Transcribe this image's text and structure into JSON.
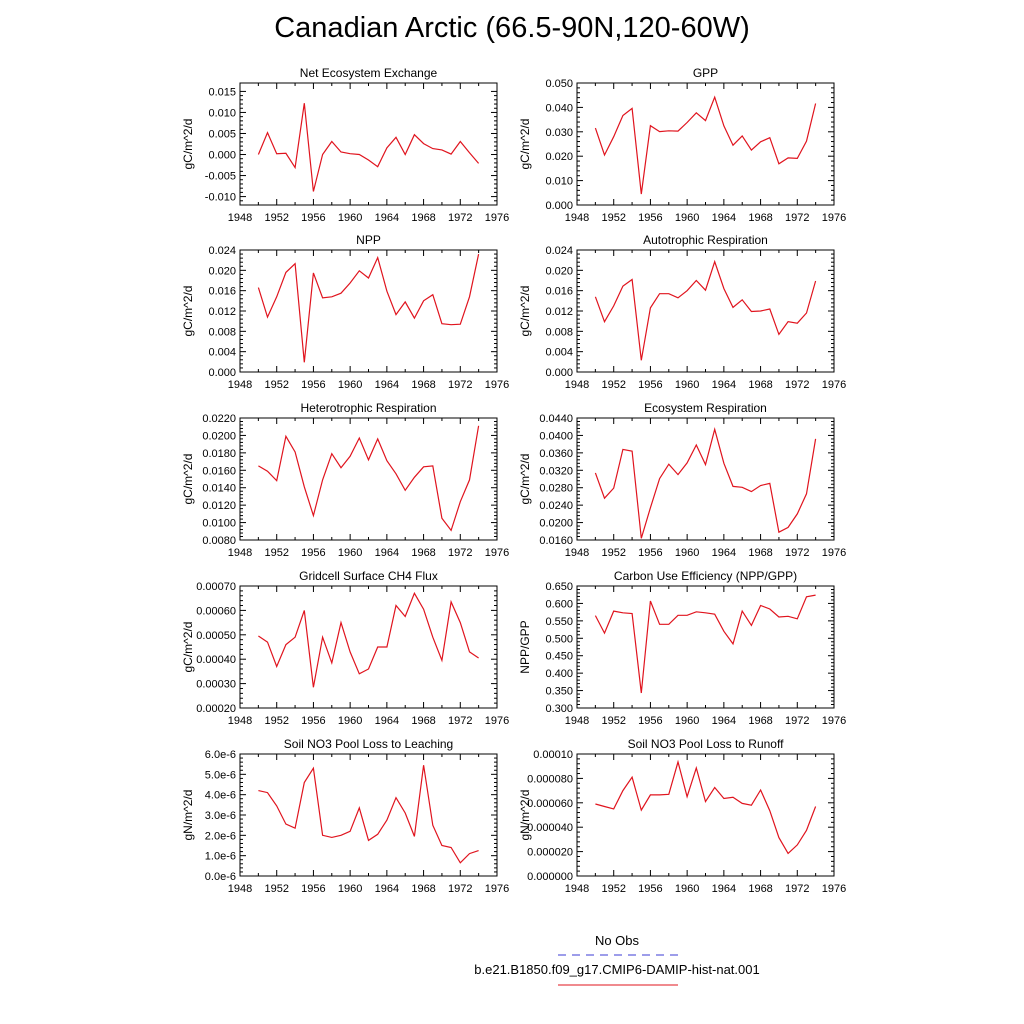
{
  "title": "Canadian Arctic (66.5-90N,120-60W)",
  "legend": {
    "items": [
      {
        "label": "No Obs",
        "color": "#3b3bd6",
        "dash": true
      },
      {
        "label": "b.e21.B1850.f09_g17.CMIP6-DAMIP-hist-nat.001",
        "color": "#e0141e",
        "dash": false
      }
    ]
  },
  "chart_data": [
    {
      "type": "line",
      "title": "Net Ecosystem Exchange",
      "ylabel": "gC/m^2/d",
      "xlim": [
        1948,
        1976
      ],
      "xticks": [
        1948,
        1952,
        1956,
        1960,
        1964,
        1968,
        1972,
        1976
      ],
      "ylim": [
        -0.012,
        0.017
      ],
      "yticks": [
        -0.01,
        -0.005,
        0.0,
        0.005,
        0.01,
        0.015
      ],
      "ytick_labels": [
        "-0.010",
        "-0.005",
        "0.000",
        "0.005",
        "0.010",
        "0.015"
      ],
      "x": [
        1950,
        1951,
        1952,
        1953,
        1954,
        1955,
        1956,
        1957,
        1958,
        1959,
        1960,
        1961,
        1962,
        1963,
        1964,
        1965,
        1966,
        1967,
        1968,
        1969,
        1970,
        1971,
        1972,
        1973,
        1974
      ],
      "values": [
        0.0,
        0.0052,
        0.0002,
        0.0003,
        -0.0031,
        0.0122,
        -0.0088,
        0.0,
        0.0031,
        0.0006,
        0.0002,
        0.0,
        -0.0013,
        -0.0029,
        0.0016,
        0.0041,
        0.0,
        0.0047,
        0.0026,
        0.0014,
        0.0011,
        0.0001,
        0.0031,
        0.0004,
        -0.0021
      ]
    },
    {
      "type": "line",
      "title": "GPP",
      "ylabel": "gC/m^2/d",
      "xlim": [
        1948,
        1976
      ],
      "xticks": [
        1948,
        1952,
        1956,
        1960,
        1964,
        1968,
        1972,
        1976
      ],
      "ylim": [
        0,
        0.05
      ],
      "yticks": [
        0.0,
        0.01,
        0.02,
        0.03,
        0.04,
        0.05
      ],
      "ytick_labels": [
        "0.000",
        "0.010",
        "0.020",
        "0.030",
        "0.040",
        "0.050"
      ],
      "x": [
        1950,
        1951,
        1952,
        1953,
        1954,
        1955,
        1956,
        1957,
        1958,
        1959,
        1960,
        1961,
        1962,
        1963,
        1964,
        1965,
        1966,
        1967,
        1968,
        1969,
        1970,
        1971,
        1972,
        1973,
        1974
      ],
      "values": [
        0.0315,
        0.0205,
        0.028,
        0.0367,
        0.0396,
        0.0045,
        0.0325,
        0.0301,
        0.0304,
        0.0303,
        0.0338,
        0.0378,
        0.0346,
        0.0442,
        0.0324,
        0.0245,
        0.0283,
        0.0225,
        0.0259,
        0.0276,
        0.0169,
        0.0193,
        0.0191,
        0.0262,
        0.0416
      ]
    },
    {
      "type": "line",
      "title": "NPP",
      "ylabel": "gC/m^2/d",
      "xlim": [
        1948,
        1976
      ],
      "xticks": [
        1948,
        1952,
        1956,
        1960,
        1964,
        1968,
        1972,
        1976
      ],
      "ylim": [
        0,
        0.024
      ],
      "yticks": [
        0.0,
        0.004,
        0.008,
        0.012,
        0.016,
        0.02,
        0.024
      ],
      "ytick_labels": [
        "0.000",
        "0.004",
        "0.008",
        "0.012",
        "0.016",
        "0.020",
        "0.024"
      ],
      "x": [
        1950,
        1951,
        1952,
        1953,
        1954,
        1955,
        1956,
        1957,
        1958,
        1959,
        1960,
        1961,
        1962,
        1963,
        1964,
        1965,
        1966,
        1967,
        1968,
        1969,
        1970,
        1971,
        1972,
        1973,
        1974
      ],
      "values": [
        0.0166,
        0.0108,
        0.0148,
        0.0196,
        0.0213,
        0.0019,
        0.0195,
        0.0146,
        0.0148,
        0.0155,
        0.0175,
        0.0199,
        0.0185,
        0.0225,
        0.0159,
        0.0113,
        0.0138,
        0.0106,
        0.014,
        0.0152,
        0.0095,
        0.0093,
        0.0094,
        0.0148,
        0.0232
      ]
    },
    {
      "type": "line",
      "title": "Autotrophic Respiration",
      "ylabel": "gC/m^2/d",
      "xlim": [
        1948,
        1976
      ],
      "xticks": [
        1948,
        1952,
        1956,
        1960,
        1964,
        1968,
        1972,
        1976
      ],
      "ylim": [
        0,
        0.024
      ],
      "yticks": [
        0.0,
        0.004,
        0.008,
        0.012,
        0.016,
        0.02,
        0.024
      ],
      "ytick_labels": [
        "0.000",
        "0.004",
        "0.008",
        "0.012",
        "0.016",
        "0.020",
        "0.024"
      ],
      "x": [
        1950,
        1951,
        1952,
        1953,
        1954,
        1955,
        1956,
        1957,
        1958,
        1959,
        1960,
        1961,
        1962,
        1963,
        1964,
        1965,
        1966,
        1967,
        1968,
        1969,
        1970,
        1971,
        1972,
        1973,
        1974
      ],
      "values": [
        0.0148,
        0.0099,
        0.013,
        0.0169,
        0.0182,
        0.0023,
        0.0126,
        0.0154,
        0.0154,
        0.0146,
        0.016,
        0.018,
        0.0161,
        0.0217,
        0.0164,
        0.0127,
        0.0142,
        0.0119,
        0.012,
        0.0124,
        0.0074,
        0.0099,
        0.0096,
        0.0116,
        0.0179
      ]
    },
    {
      "type": "line",
      "title": "Heterotrophic Respiration",
      "ylabel": "gC/m^2/d",
      "xlim": [
        1948,
        1976
      ],
      "xticks": [
        1948,
        1952,
        1956,
        1960,
        1964,
        1968,
        1972,
        1976
      ],
      "ylim": [
        0.008,
        0.022
      ],
      "yticks": [
        0.008,
        0.01,
        0.012,
        0.014,
        0.016,
        0.018,
        0.02,
        0.022
      ],
      "ytick_labels": [
        "0.0080",
        "0.0100",
        "0.0120",
        "0.0140",
        "0.0160",
        "0.0180",
        "0.0200",
        "0.0220"
      ],
      "x": [
        1950,
        1951,
        1952,
        1953,
        1954,
        1955,
        1956,
        1957,
        1958,
        1959,
        1960,
        1961,
        1962,
        1963,
        1964,
        1965,
        1966,
        1967,
        1968,
        1969,
        1970,
        1971,
        1972,
        1973,
        1974
      ],
      "values": [
        0.0165,
        0.0159,
        0.0148,
        0.0199,
        0.0181,
        0.0141,
        0.0108,
        0.0149,
        0.0179,
        0.0163,
        0.0176,
        0.0197,
        0.0172,
        0.0196,
        0.0171,
        0.0156,
        0.0137,
        0.0152,
        0.0164,
        0.0165,
        0.0105,
        0.0091,
        0.0124,
        0.0149,
        0.0211
      ]
    },
    {
      "type": "line",
      "title": "Ecosystem Respiration",
      "ylabel": "gC/m^2/d",
      "xlim": [
        1948,
        1976
      ],
      "xticks": [
        1948,
        1952,
        1956,
        1960,
        1964,
        1968,
        1972,
        1976
      ],
      "ylim": [
        0.016,
        0.044
      ],
      "yticks": [
        0.016,
        0.02,
        0.024,
        0.028,
        0.032,
        0.036,
        0.04,
        0.044
      ],
      "ytick_labels": [
        "0.0160",
        "0.0200",
        "0.0240",
        "0.0280",
        "0.0320",
        "0.0360",
        "0.0400",
        "0.0440"
      ],
      "x": [
        1950,
        1951,
        1952,
        1953,
        1954,
        1955,
        1956,
        1957,
        1958,
        1959,
        1960,
        1961,
        1962,
        1963,
        1964,
        1965,
        1966,
        1967,
        1968,
        1969,
        1970,
        1971,
        1972,
        1973,
        1974
      ],
      "values": [
        0.0314,
        0.0256,
        0.0279,
        0.0368,
        0.0364,
        0.0164,
        0.0234,
        0.0301,
        0.0334,
        0.031,
        0.0337,
        0.0378,
        0.0333,
        0.0414,
        0.0336,
        0.0283,
        0.0281,
        0.0271,
        0.0285,
        0.029,
        0.0178,
        0.0189,
        0.022,
        0.0266,
        0.0392
      ]
    },
    {
      "type": "line",
      "title": "Gridcell Surface CH4 Flux",
      "ylabel": "gC/m^2/d",
      "xlim": [
        1948,
        1976
      ],
      "xticks": [
        1948,
        1952,
        1956,
        1960,
        1964,
        1968,
        1972,
        1976
      ],
      "ylim": [
        0.0002,
        0.0007
      ],
      "yticks": [
        0.0002,
        0.0003,
        0.0004,
        0.0005,
        0.0006,
        0.0007
      ],
      "ytick_labels": [
        "0.00020",
        "0.00030",
        "0.00040",
        "0.00050",
        "0.00060",
        "0.00070"
      ],
      "x": [
        1950,
        1951,
        1952,
        1953,
        1954,
        1955,
        1956,
        1957,
        1958,
        1959,
        1960,
        1961,
        1962,
        1963,
        1964,
        1965,
        1966,
        1967,
        1968,
        1969,
        1970,
        1971,
        1972,
        1973,
        1974
      ],
      "values": [
        0.000495,
        0.00047,
        0.00037,
        0.00046,
        0.00049,
        0.0006,
        0.000285,
        0.00049,
        0.000385,
        0.00055,
        0.00043,
        0.00034,
        0.00036,
        0.00045,
        0.00045,
        0.00062,
        0.000575,
        0.00067,
        0.000605,
        0.00049,
        0.000395,
        0.000635,
        0.00055,
        0.00043,
        0.000405
      ]
    },
    {
      "type": "line",
      "title": "Carbon Use Efficiency (NPP/GPP)",
      "ylabel": "NPP/GPP",
      "xlim": [
        1948,
        1976
      ],
      "xticks": [
        1948,
        1952,
        1956,
        1960,
        1964,
        1968,
        1972,
        1976
      ],
      "ylim": [
        0.3,
        0.65
      ],
      "yticks": [
        0.3,
        0.35,
        0.4,
        0.45,
        0.5,
        0.55,
        0.6,
        0.65
      ],
      "ytick_labels": [
        "0.300",
        "0.350",
        "0.400",
        "0.450",
        "0.500",
        "0.550",
        "0.600",
        "0.650"
      ],
      "x": [
        1950,
        1951,
        1952,
        1953,
        1954,
        1955,
        1956,
        1957,
        1958,
        1959,
        1960,
        1961,
        1962,
        1963,
        1964,
        1965,
        1966,
        1967,
        1968,
        1969,
        1970,
        1971,
        1972,
        1973,
        1974
      ],
      "values": [
        0.565,
        0.515,
        0.578,
        0.573,
        0.571,
        0.343,
        0.607,
        0.54,
        0.54,
        0.566,
        0.566,
        0.576,
        0.573,
        0.569,
        0.52,
        0.484,
        0.578,
        0.537,
        0.594,
        0.584,
        0.561,
        0.563,
        0.556,
        0.619,
        0.624
      ]
    },
    {
      "type": "line",
      "title": "Soil NO3 Pool Loss to Leaching",
      "ylabel": "gN/m^2/d",
      "xlim": [
        1948,
        1976
      ],
      "xticks": [
        1948,
        1952,
        1956,
        1960,
        1964,
        1968,
        1972,
        1976
      ],
      "ylim": [
        0,
        6e-06
      ],
      "yticks": [
        0,
        1e-06,
        2e-06,
        3e-06,
        4e-06,
        5e-06,
        6e-06
      ],
      "ytick_labels": [
        "0.0e-6",
        "1.0e-6",
        "2.0e-6",
        "3.0e-6",
        "4.0e-6",
        "5.0e-6",
        "6.0e-6"
      ],
      "x": [
        1950,
        1951,
        1952,
        1953,
        1954,
        1955,
        1956,
        1957,
        1958,
        1959,
        1960,
        1961,
        1962,
        1963,
        1964,
        1965,
        1966,
        1967,
        1968,
        1969,
        1970,
        1971,
        1972,
        1973,
        1974
      ],
      "values": [
        4.2e-06,
        4.1e-06,
        3.45e-06,
        2.55e-06,
        2.35e-06,
        4.6e-06,
        5.3e-06,
        2e-06,
        1.9e-06,
        2e-06,
        2.2e-06,
        3.35e-06,
        1.75e-06,
        2.05e-06,
        2.75e-06,
        3.85e-06,
        3.1e-06,
        1.95e-06,
        5.45e-06,
        2.5e-06,
        1.5e-06,
        1.4e-06,
        6.5e-07,
        1.1e-06,
        1.25e-06
      ]
    },
    {
      "type": "line",
      "title": "Soil NO3 Pool Loss to Runoff",
      "ylabel": "gN/m^2/d",
      "xlim": [
        1948,
        1976
      ],
      "xticks": [
        1948,
        1952,
        1956,
        1960,
        1964,
        1968,
        1972,
        1976
      ],
      "ylim": [
        0,
        0.0001
      ],
      "yticks": [
        0,
        2e-05,
        4e-05,
        6e-05,
        8e-05,
        0.0001
      ],
      "ytick_labels": [
        "0.000000",
        "0.000020",
        "0.000040",
        "0.000060",
        "0.000080",
        "0.00010"
      ],
      "x": [
        1950,
        1951,
        1952,
        1953,
        1954,
        1955,
        1956,
        1957,
        1958,
        1959,
        1960,
        1961,
        1962,
        1963,
        1964,
        1965,
        1966,
        1967,
        1968,
        1969,
        1970,
        1971,
        1972,
        1973,
        1974
      ],
      "values": [
        5.9e-05,
        5.7e-05,
        5.5e-05,
        7e-05,
        8.1e-05,
        5.4e-05,
        6.65e-05,
        6.65e-05,
        6.7e-05,
        9.35e-05,
        6.5e-05,
        8.85e-05,
        6.1e-05,
        7.25e-05,
        6.35e-05,
        6.45e-05,
        5.95e-05,
        5.8e-05,
        7.05e-05,
        5.35e-05,
        3.15e-05,
        1.85e-05,
        2.55e-05,
        3.75e-05,
        5.7e-05
      ]
    }
  ]
}
